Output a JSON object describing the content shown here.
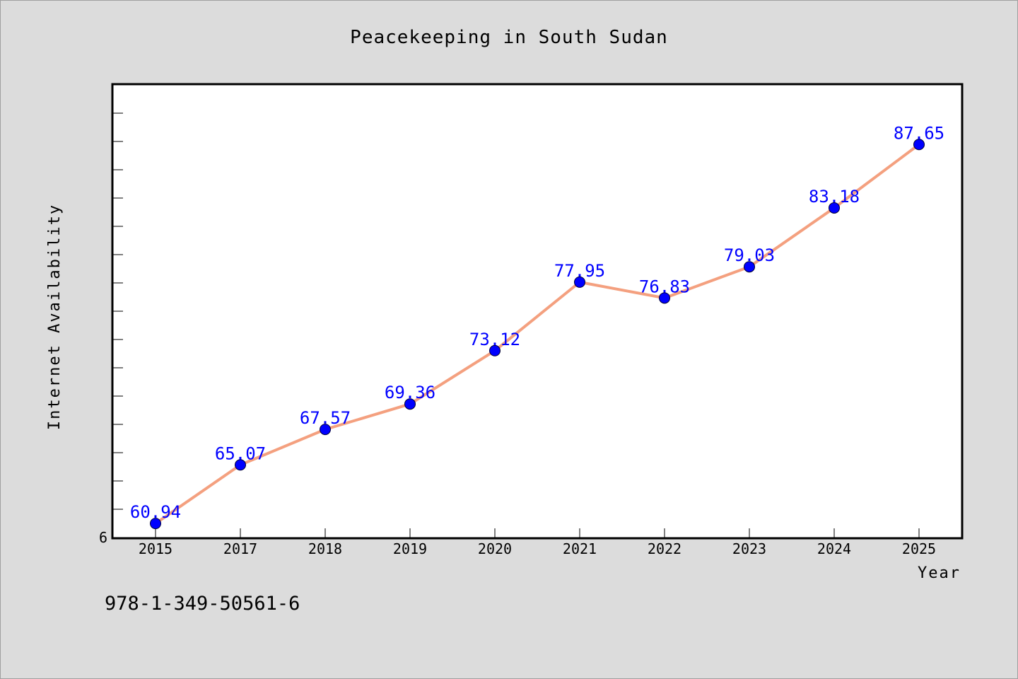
{
  "colors": {
    "background": "#dcdcdc",
    "plot_background": "#ffffff",
    "line": "#f4a07f",
    "marker": "#0000ff",
    "data_label": "#0000ff",
    "axis": "#000000"
  },
  "footer": {
    "isbn": "978-1-349-50561-6"
  },
  "chart_data": {
    "type": "line",
    "title": "Peacekeeping in South Sudan",
    "xlabel": "Year",
    "ylabel": "Internet Availability",
    "categories": [
      "2015",
      "2017",
      "2018",
      "2019",
      "2020",
      "2021",
      "2022",
      "2023",
      "2024",
      "2025"
    ],
    "values": [
      60.94,
      65.07,
      67.57,
      69.36,
      73.12,
      77.95,
      76.83,
      79.03,
      83.18,
      87.65
    ],
    "value_labels": [
      "60.94",
      "65.07",
      "67.57",
      "69.36",
      "73.12",
      "77.95",
      "76.83",
      "79.03",
      "83.18",
      "87.65"
    ],
    "y_tick_labels": [
      "6"
    ],
    "ylim": [
      59.9,
      91.9
    ],
    "grid": false,
    "legend": "none"
  }
}
